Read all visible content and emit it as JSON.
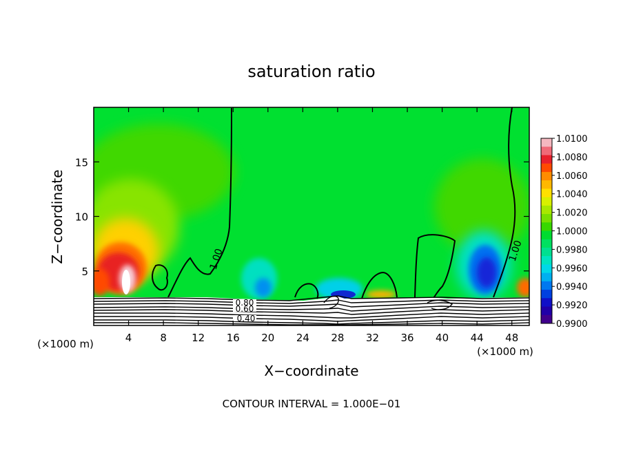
{
  "chart_data": {
    "type": "heatmap",
    "title": "saturation ratio",
    "xlabel": "X−coordinate",
    "ylabel": "Z−coordinate",
    "x_unit": "(×1000 m)",
    "x_unit_right": "(×1000 m)",
    "footer": "CONTOUR INTERVAL = 1.000E−01",
    "xlim": [
      0,
      50
    ],
    "ylim": [
      0,
      20
    ],
    "xticks": [
      4,
      8,
      12,
      16,
      20,
      24,
      28,
      32,
      36,
      40,
      44,
      48
    ],
    "xtick_labels": [
      "4",
      "8",
      "12",
      "16",
      "20",
      "24",
      "28",
      "32",
      "36",
      "40",
      "44",
      "48"
    ],
    "yticks": [
      5,
      10,
      15
    ],
    "ytick_labels": [
      "5",
      "10",
      "15"
    ],
    "colorbar": {
      "min": 0.99,
      "max": 1.01,
      "tick_labels": [
        "1.0100",
        "1.0080",
        "1.0060",
        "1.0040",
        "1.0020",
        "1.0000",
        "0.9980",
        "0.9960",
        "0.9940",
        "0.9920",
        "0.9900"
      ],
      "colors": [
        "#f5b8c0",
        "#f06a78",
        "#e8202c",
        "#ff4a00",
        "#ff8c00",
        "#ffb800",
        "#ffe000",
        "#d8f000",
        "#a8e800",
        "#78e000",
        "#38d800",
        "#00dc30",
        "#00e060",
        "#00e090",
        "#00e4c0",
        "#00d8e8",
        "#00b0f0",
        "#0078f0",
        "#0040e0",
        "#1010c8",
        "#2000a8",
        "#40008c"
      ]
    },
    "contour_labels": [
      "1.00",
      "1.00",
      "0.80",
      "0.60",
      "0.40"
    ],
    "surface_contours": [
      0.1,
      0.2,
      0.3,
      0.4,
      0.5,
      0.6,
      0.7,
      0.8,
      0.9
    ],
    "field_background": 0.9995,
    "features": [
      {
        "kind": "high",
        "x": 4.0,
        "z": 4.5,
        "value": 1.0095
      },
      {
        "kind": "high",
        "x": 2.0,
        "z": 3.5,
        "value": 1.0065
      },
      {
        "kind": "low",
        "x": 19.0,
        "z": 3.8,
        "value": 0.9955
      },
      {
        "kind": "low",
        "x": 29.5,
        "z": 2.8,
        "value": 0.9935
      },
      {
        "kind": "low",
        "x": 45.5,
        "z": 4.8,
        "value": 0.9925
      },
      {
        "kind": "high",
        "x": 33.0,
        "z": 2.8,
        "value": 1.003
      },
      {
        "kind": "high",
        "x": 49.5,
        "z": 3.0,
        "value": 1.006
      }
    ]
  }
}
